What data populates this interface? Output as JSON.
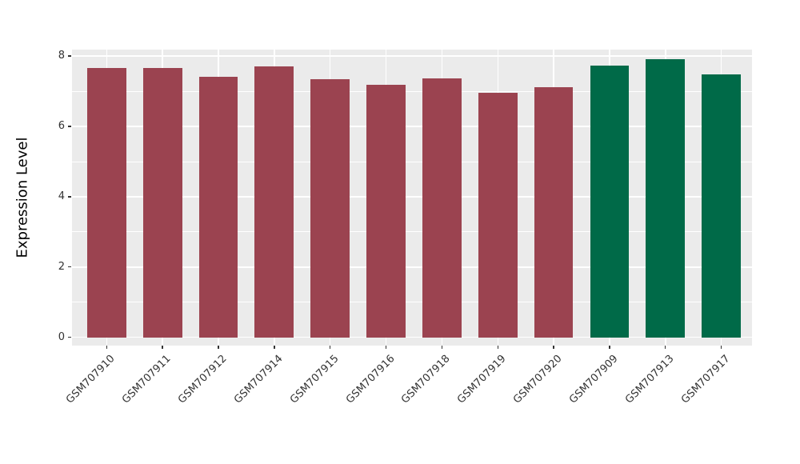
{
  "chart_data": {
    "type": "bar",
    "title": "",
    "xlabel": "",
    "ylabel": "Expression Level",
    "ylim": [
      -0.25,
      8.2
    ],
    "yticks": [
      0,
      2,
      4,
      6,
      8
    ],
    "yticks_minor": [
      1,
      3,
      5,
      7
    ],
    "grid": "major and minor horizontal lines plus vertical major line at each category, white on gray panel",
    "legend_position": "none",
    "categories": [
      "GSM707910",
      "GSM707911",
      "GSM707912",
      "GSM707914",
      "GSM707915",
      "GSM707916",
      "GSM707918",
      "GSM707919",
      "GSM707920",
      "GSM707909",
      "GSM707913",
      "GSM707917"
    ],
    "values": [
      7.67,
      7.67,
      7.41,
      7.7,
      7.34,
      7.18,
      7.36,
      6.95,
      7.11,
      7.73,
      7.92,
      7.48
    ],
    "groups": [
      "group-1",
      "group-1",
      "group-1",
      "group-1",
      "group-1",
      "group-1",
      "group-1",
      "group-1",
      "group-1",
      "group-2",
      "group-2",
      "group-2"
    ],
    "colors": {
      "group-1": "#9B4350",
      "group-2": "#006A48"
    },
    "panel_background": "#EBEBEB",
    "gridline_color": "#FFFFFF",
    "tick_label_color": "#333333",
    "axis_title_color": "#000000"
  }
}
